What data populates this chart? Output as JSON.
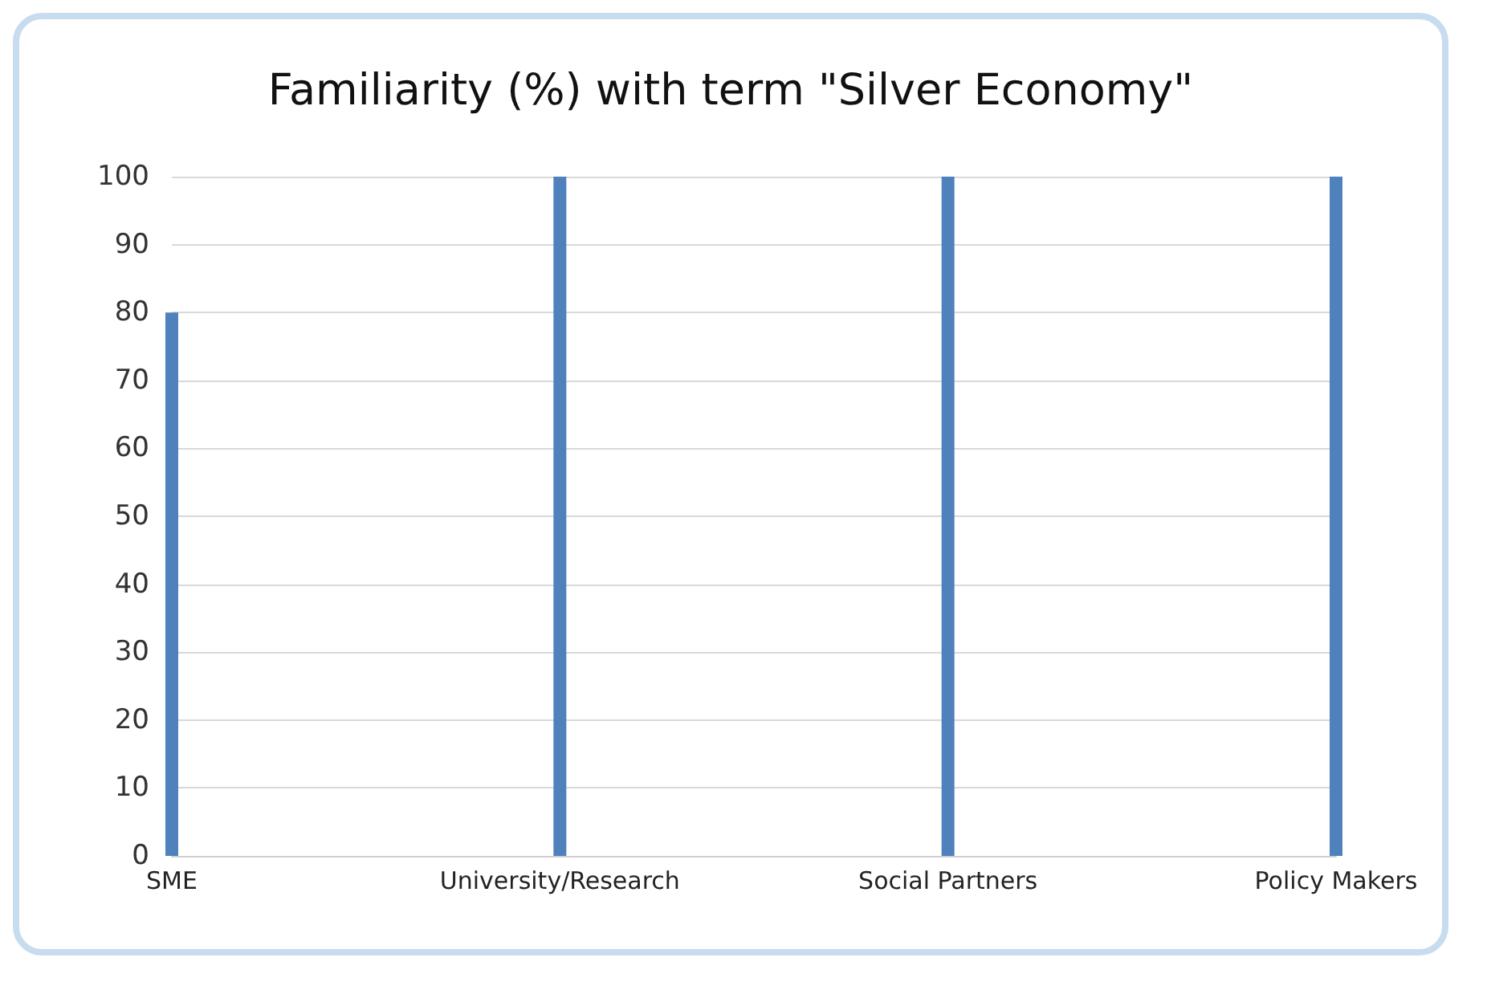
{
  "chart_data": {
    "type": "bar",
    "title": "Familiarity (%) with term \"Silver Economy\"",
    "categories": [
      "SME",
      "University/Research",
      "Social Partners",
      "Policy Makers"
    ],
    "values": [
      80,
      100,
      100,
      100
    ],
    "color": "#4f81bd",
    "ylim": [
      0,
      100
    ],
    "yticks": [
      0,
      10,
      20,
      30,
      40,
      50,
      60,
      70,
      80,
      90,
      100
    ],
    "grid": "y"
  }
}
